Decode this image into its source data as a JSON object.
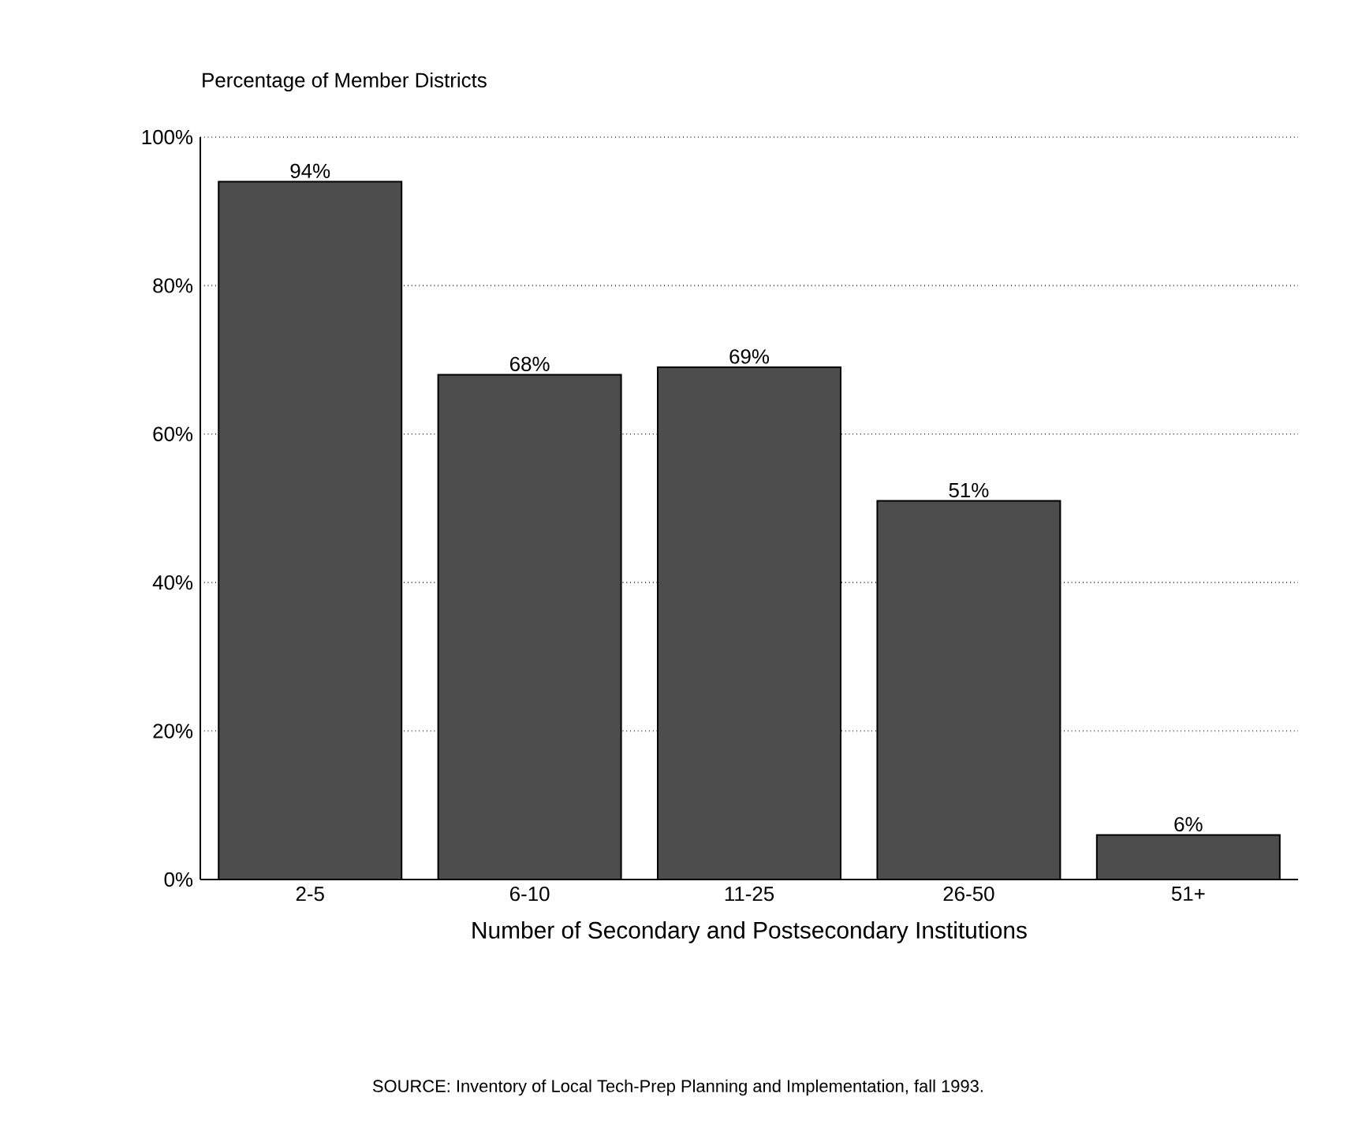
{
  "chart_data": {
    "type": "bar",
    "ylabel": "Percentage of Member Districts",
    "xlabel": "Number of Secondary and Postsecondary Institutions",
    "categories": [
      "2-5",
      "6-10",
      "11-25",
      "26-50",
      "51+"
    ],
    "values": [
      94,
      68,
      69,
      51,
      6
    ],
    "value_labels": [
      "94%",
      "68%",
      "69%",
      "51%",
      "6%"
    ],
    "color": "#4d4d4d",
    "ylim": [
      0,
      100
    ],
    "yticks": [
      {
        "value": 0,
        "label": "0%"
      },
      {
        "value": 20,
        "label": "20%"
      },
      {
        "value": 40,
        "label": "40%"
      },
      {
        "value": 60,
        "label": "60%"
      },
      {
        "value": 80,
        "label": "80%"
      },
      {
        "value": 100,
        "label": "100%"
      }
    ],
    "grid": "y",
    "annotations": [
      "SOURCE:  Inventory of Local Tech-Prep Planning and Implementation, fall 1993."
    ]
  }
}
